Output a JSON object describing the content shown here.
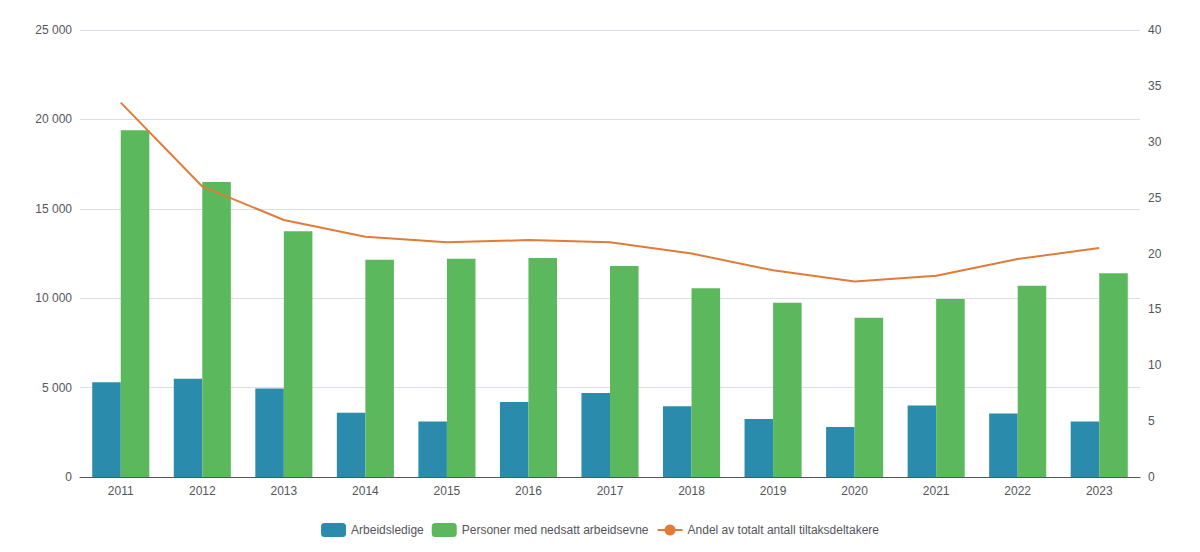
{
  "chart_data": {
    "type": "bar",
    "categories": [
      "2011",
      "2012",
      "2013",
      "2014",
      "2015",
      "2016",
      "2017",
      "2018",
      "2019",
      "2020",
      "2021",
      "2022",
      "2023"
    ],
    "series": [
      {
        "name": "Arbeidsledige",
        "color": "#2A8BAD",
        "values": [
          5300,
          5500,
          4950,
          3600,
          3100,
          4200,
          4700,
          3950,
          3250,
          2800,
          4000,
          3550,
          3100
        ]
      },
      {
        "name": "Personer med nedsatt arbeidsevne",
        "color": "#5CB85C",
        "values": [
          19400,
          16500,
          13750,
          12150,
          12200,
          12250,
          11800,
          10550,
          9750,
          8900,
          9950,
          10700,
          11400
        ]
      },
      {
        "name": "Andel av totalt antall tiltaksdeltakere",
        "type": "line",
        "axis": "y2",
        "color": "#E07B39",
        "values": [
          33.5,
          26.0,
          23.0,
          21.5,
          21.0,
          21.2,
          21.0,
          20.0,
          18.5,
          17.5,
          18.0,
          19.5,
          20.5
        ]
      }
    ],
    "ylim": [
      0,
      25000
    ],
    "yticks": [
      0,
      {
        "value": 5000,
        "label": "5 000"
      },
      {
        "value": 10000,
        "label": "10 000"
      },
      {
        "value": 15000,
        "label": "15 000"
      },
      {
        "value": 20000,
        "label": "20 000"
      },
      {
        "value": 25000,
        "label": "25 000"
      }
    ],
    "y2lim": [
      0,
      40
    ],
    "y2ticks": [
      0,
      5,
      10,
      15,
      20,
      25,
      30,
      35,
      40
    ],
    "grid": true,
    "legend": "bottom"
  }
}
